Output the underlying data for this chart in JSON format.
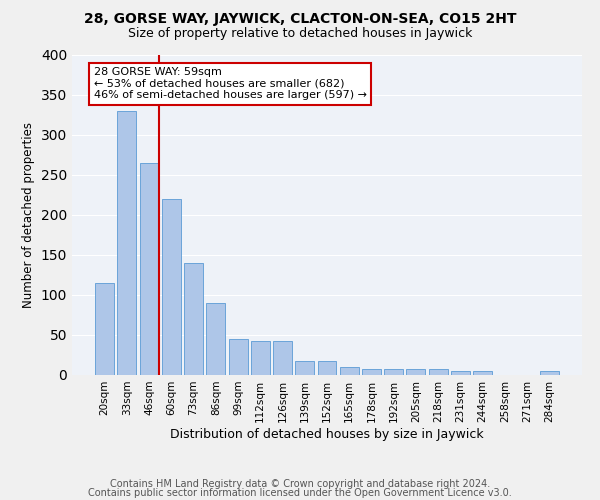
{
  "title1": "28, GORSE WAY, JAYWICK, CLACTON-ON-SEA, CO15 2HT",
  "title2": "Size of property relative to detached houses in Jaywick",
  "xlabel": "Distribution of detached houses by size in Jaywick",
  "ylabel": "Number of detached properties",
  "categories": [
    "20sqm",
    "33sqm",
    "46sqm",
    "60sqm",
    "73sqm",
    "86sqm",
    "99sqm",
    "112sqm",
    "126sqm",
    "139sqm",
    "152sqm",
    "165sqm",
    "178sqm",
    "192sqm",
    "205sqm",
    "218sqm",
    "231sqm",
    "244sqm",
    "258sqm",
    "271sqm",
    "284sqm"
  ],
  "values": [
    115,
    330,
    265,
    220,
    140,
    90,
    45,
    42,
    42,
    18,
    18,
    10,
    7,
    7,
    8,
    8,
    5,
    5,
    0,
    0,
    5
  ],
  "bar_color": "#aec6e8",
  "bar_edge_color": "#5b9bd5",
  "annotation_line1": "28 GORSE WAY: 59sqm",
  "annotation_line2": "← 53% of detached houses are smaller (682)",
  "annotation_line3": "46% of semi-detached houses are larger (597) →",
  "annotation_box_color": "#ffffff",
  "annotation_box_edge_color": "#cc0000",
  "footer1": "Contains HM Land Registry data © Crown copyright and database right 2024.",
  "footer2": "Contains public sector information licensed under the Open Government Licence v3.0.",
  "bg_color": "#eef2f8",
  "grid_color": "#ffffff",
  "ylim": [
    0,
    400
  ],
  "title_fontsize": 10,
  "subtitle_fontsize": 9,
  "tick_fontsize": 7.5,
  "ylabel_fontsize": 8.5,
  "xlabel_fontsize": 9,
  "footer_fontsize": 7,
  "annot_fontsize": 8
}
